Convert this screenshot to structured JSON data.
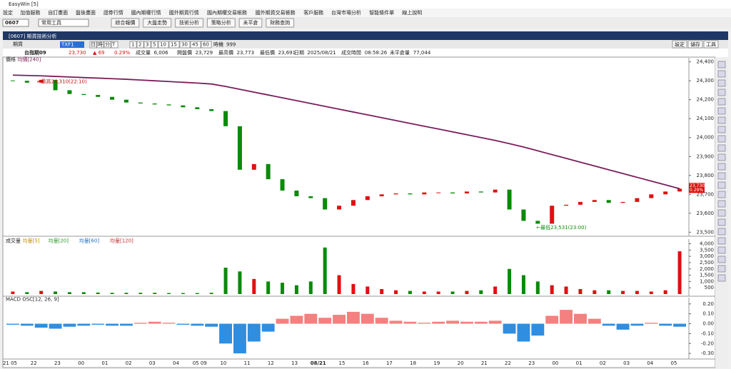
{
  "app": {
    "title": "EasyWin  [5]"
  },
  "menu": [
    "設定",
    "加值服務",
    "自訂畫面",
    "盤後畫面",
    "證券行情",
    "國內期權行情",
    "國外期貨行情",
    "國內期權交易帳務",
    "國外期貨交易帳務",
    "客戶服務",
    "台灣市場分析",
    "智能條件單",
    "線上說明"
  ],
  "toolbar": {
    "code": "0607",
    "select": "常用工具",
    "buttons": [
      "綜合報價",
      "大盤走勢",
      "技術分析",
      "策略分析",
      "未平倉",
      "財務查詢"
    ]
  },
  "window": {
    "title": "[0607] 期貨技術分析",
    "product": "期貨",
    "symbol": "TXF1",
    "periods": [
      "日",
      "時",
      "分",
      "T"
    ],
    "minutes": [
      "1",
      "2",
      "3",
      "5",
      "10",
      "15",
      "30",
      "45",
      "60"
    ],
    "count_label": "時機",
    "count": "999",
    "actions": [
      "設定",
      "儲存",
      "工具"
    ]
  },
  "info": {
    "name": "台指期09",
    "price": "23,730",
    "change": "▲ 69",
    "pct": "0.29%",
    "fields": [
      {
        "label": "成交量",
        "value": "6,006"
      },
      {
        "label": "開盤價",
        "value": "23,729"
      },
      {
        "label": "最高價",
        "value": "23,773"
      },
      {
        "label": "最低價",
        "value": "23,691"
      },
      {
        "label": "日期",
        "value": "2025/08/21"
      },
      {
        "label": "成交時間",
        "value": "08:58:26"
      },
      {
        "label": "未平倉量",
        "value": "77,044"
      }
    ]
  },
  "time_axis": [
    "21 05",
    "22",
    "23",
    "00",
    "01",
    "02",
    "03",
    "04",
    "05 09",
    "10",
    "11",
    "12",
    "13",
    "08/21",
    "15",
    "16",
    "17",
    "18",
    "19",
    "20",
    "21",
    "22",
    "23",
    "00",
    "01",
    "02",
    "03",
    "04",
    "05"
  ],
  "chart_data": [
    {
      "type": "candlestick",
      "title": "價格",
      "up_color": "#e01010",
      "down_color": "#0a8a0a",
      "close": [
        24300,
        24290,
        24305,
        24250,
        24230,
        24225,
        24215,
        24200,
        24185,
        24180,
        24175,
        24170,
        24160,
        24150,
        24140,
        24060,
        23830,
        23860,
        23780,
        23720,
        23690,
        23680,
        23620,
        23640,
        23670,
        23690,
        23700,
        23705,
        23700,
        23710,
        23710,
        23705,
        23715,
        23710,
        23725,
        23620,
        23560,
        23545,
        23640,
        23645,
        23660,
        23670,
        23655,
        23660,
        23680,
        23700,
        23715,
        23730
      ],
      "series": [
        {
          "name": "均價[240]",
          "color": "#7b1e5a",
          "values": [
            24330,
            24328,
            24326,
            24323,
            24320,
            24317,
            24314,
            24311,
            24308,
            24304,
            24300,
            24296,
            24292,
            24288,
            24283,
            24270,
            24255,
            24240,
            24225,
            24210,
            24195,
            24180,
            24165,
            24150,
            24135,
            24120,
            24105,
            24090,
            24075,
            24060,
            24045,
            24030,
            24015,
            24000,
            23985,
            23968,
            23950,
            23930,
            23910,
            23890,
            23870,
            23850,
            23830,
            23810,
            23790,
            23770,
            23750,
            23730
          ]
        }
      ],
      "annotations": [
        "←最高24,310(22:10)",
        "←最低23,531(23:00)",
        "23,730",
        "0.29%"
      ],
      "ylim": [
        23490,
        24410
      ],
      "yticks": [
        {
          "value": 24400,
          "label": "24,400"
        },
        {
          "value": 24300,
          "label": "24,300"
        },
        {
          "value": 24200,
          "label": "24,200"
        },
        {
          "value": 24100,
          "label": "24,100"
        },
        {
          "value": 24000,
          "label": "24,000"
        },
        {
          "value": 23900,
          "label": "23,900"
        },
        {
          "value": 23800,
          "label": "23,800"
        },
        {
          "value": 23700,
          "label": "23,700"
        },
        {
          "value": 23600,
          "label": "23,600"
        },
        {
          "value": 23500,
          "label": "23,500"
        }
      ]
    },
    {
      "type": "bar",
      "title": "成交量",
      "legend": [
        {
          "name": "均量[5]",
          "color": "#c09000"
        },
        {
          "name": "均量[20]",
          "color": "#2a9a2a"
        },
        {
          "name": "均量[60]",
          "color": "#2070c0"
        },
        {
          "name": "均量[120]",
          "color": "#c03030"
        }
      ],
      "values": [
        200,
        150,
        250,
        200,
        150,
        150,
        120,
        100,
        100,
        100,
        100,
        80,
        80,
        80,
        100,
        2100,
        1800,
        1200,
        1000,
        900,
        700,
        1000,
        3700,
        1500,
        800,
        600,
        400,
        300,
        250,
        200,
        200,
        200,
        250,
        300,
        600,
        2000,
        1500,
        1000,
        700,
        600,
        400,
        300,
        300,
        250,
        250,
        200,
        300,
        3400
      ],
      "ylim": [
        0,
        4200
      ],
      "yticks": [
        {
          "value": 4000,
          "label": "4,000"
        },
        {
          "value": 3500,
          "label": "3,500"
        },
        {
          "value": 3000,
          "label": "3,000"
        },
        {
          "value": 2500,
          "label": "2,500"
        },
        {
          "value": 2000,
          "label": "2,000"
        },
        {
          "value": 1500,
          "label": "1,500"
        },
        {
          "value": 1000,
          "label": "1,000"
        },
        500
      ]
    },
    {
      "type": "osc",
      "title": "MACD OSC[12, 26, 9]",
      "positive_color": "#f4807f",
      "negative_color": "#2f8ee0",
      "values": [
        -0.01,
        -0.02,
        -0.04,
        -0.05,
        -0.03,
        -0.02,
        -0.01,
        -0.02,
        -0.02,
        0.01,
        0.02,
        0.01,
        -0.01,
        -0.02,
        -0.03,
        -0.2,
        -0.3,
        -0.18,
        -0.08,
        0.05,
        0.08,
        0.1,
        0.06,
        0.09,
        0.12,
        0.1,
        0.06,
        0.03,
        0.02,
        0.01,
        0.02,
        0.03,
        0.02,
        0.02,
        0.03,
        -0.1,
        -0.18,
        -0.12,
        0.08,
        0.14,
        0.1,
        0.05,
        -0.02,
        -0.06,
        -0.02,
        0.01,
        -0.02,
        -0.03
      ],
      "ylim": [
        -0.335,
        0.242
      ],
      "yticks": [
        {
          "value": 0.2,
          "label": "0.20"
        },
        {
          "value": 0.1,
          "label": "0.10"
        },
        {
          "value": 0,
          "label": "0.00"
        },
        {
          "value": -0.1,
          "label": "-0.10"
        },
        {
          "value": -0.2,
          "label": "-0.20"
        },
        {
          "value": -0.3,
          "label": "-0.30"
        }
      ]
    }
  ]
}
